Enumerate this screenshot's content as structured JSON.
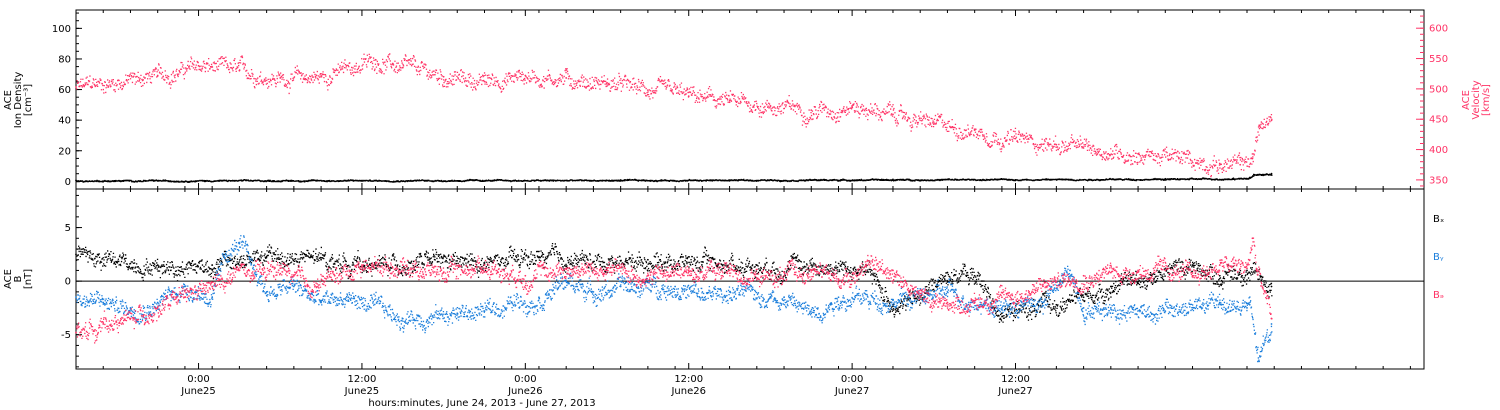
{
  "chart_data": [
    {
      "type": "scatter",
      "panel": "top",
      "left_axis": {
        "label_lines": [
          "ACE",
          "Ion Density",
          "[cm⁻³]"
        ],
        "range": [
          -5,
          112
        ],
        "ticks": [
          0,
          20,
          40,
          60,
          80,
          100
        ],
        "tick_labels": [
          "0",
          "20",
          "40",
          "60",
          "80",
          "100"
        ]
      },
      "right_axis": {
        "label_lines": [
          "ACE",
          "Velocity",
          "[km/s]"
        ],
        "range": [
          335,
          630
        ],
        "ticks": [
          350,
          400,
          450,
          500,
          550,
          600
        ],
        "tick_labels": [
          "350",
          "400",
          "450",
          "500",
          "550",
          "600"
        ],
        "color": "#ff3366"
      },
      "series": [
        {
          "axis": "right",
          "color": "#ff3366",
          "x_hours": [
            0,
            6,
            9,
            12,
            15,
            18,
            22,
            24,
            27,
            30,
            33,
            36,
            39,
            42,
            45,
            48,
            51,
            54,
            57,
            60,
            63,
            66,
            69,
            72,
            75,
            78,
            81,
            84,
            85.5,
            86.4,
            86.9,
            87.8
          ],
          "values": [
            503,
            522,
            538,
            530,
            518,
            520,
            548,
            535,
            520,
            512,
            522,
            518,
            510,
            498,
            488,
            478,
            472,
            465,
            472,
            458,
            442,
            432,
            418,
            408,
            400,
            393,
            385,
            377,
            375,
            385,
            440,
            448
          ]
        },
        {
          "axis": "left",
          "color": "#000000",
          "x_hours": [
            0,
            20,
            40,
            60,
            80,
            85,
            86.2,
            86.5,
            87.8
          ],
          "values": [
            0.6,
            0.8,
            0.9,
            1.3,
            1.7,
            2.0,
            2.5,
            4.5,
            5.0
          ]
        }
      ]
    },
    {
      "type": "scatter",
      "panel": "bottom",
      "left_axis": {
        "label_lines": [
          "ACE",
          "B",
          "[nT]"
        ],
        "range": [
          -8.2,
          8.6
        ],
        "ticks": [
          -5,
          0,
          5
        ],
        "tick_labels": [
          "-5",
          "0",
          "5"
        ]
      },
      "legend": [
        "Bₓ",
        "Bᵧ",
        "Bₔ"
      ],
      "zero_line": true,
      "series": [
        {
          "name": "Bx",
          "color": "#000000",
          "x_hours": [
            0,
            3,
            6,
            10,
            14,
            18,
            22,
            26,
            30,
            34,
            38,
            42,
            46,
            50,
            54,
            58,
            60,
            62,
            64,
            66,
            68,
            72,
            74,
            76,
            78,
            80,
            82,
            84,
            86,
            87.8
          ],
          "values": [
            2.5,
            1.8,
            1.5,
            1.5,
            2.3,
            2.0,
            1.5,
            1.8,
            1.6,
            2.2,
            1.8,
            2.0,
            1.8,
            1.5,
            1.5,
            1.0,
            -2.2,
            -1.5,
            0.8,
            0.5,
            -3.0,
            -2.2,
            -1.5,
            -0.5,
            0.2,
            1.0,
            1.5,
            0.5,
            1.0,
            -0.5
          ]
        },
        {
          "name": "By",
          "color": "#1c7fdc",
          "x_hours": [
            0,
            2,
            4,
            6,
            8,
            10,
            11,
            12,
            14,
            16,
            18,
            20,
            24,
            28,
            30,
            32,
            34,
            36,
            38,
            40,
            44,
            46,
            48,
            52,
            54,
            56,
            60,
            62,
            64,
            68,
            71,
            73,
            74,
            76,
            80,
            84,
            86,
            86.2,
            86.8,
            87.8
          ],
          "values": [
            -1.5,
            -2.0,
            -2.5,
            -2.0,
            -0.5,
            -1.5,
            2.5,
            3.5,
            -1.0,
            -0.5,
            -2.0,
            -1.5,
            -3.5,
            -3.0,
            -2.8,
            -2.0,
            -1.5,
            0.0,
            -1.0,
            -0.5,
            -0.5,
            -1.5,
            -1.0,
            -1.5,
            -3.0,
            -1.5,
            -1.8,
            -1.5,
            -1.0,
            -2.5,
            -2.0,
            1.0,
            -2.5,
            -2.5,
            -2.8,
            -2.0,
            -2.5,
            -2.2,
            -7.5,
            -4.0
          ]
        },
        {
          "name": "Bz",
          "color": "#ff3366",
          "x_hours": [
            0,
            2,
            4,
            6,
            8,
            10,
            12,
            13,
            15,
            17,
            19,
            21,
            24,
            27,
            30,
            33,
            36,
            39,
            42,
            45,
            48,
            50,
            52,
            54,
            56,
            58,
            60,
            62,
            64,
            66,
            68,
            70,
            72,
            74,
            76,
            78,
            80,
            82,
            84,
            86,
            86.4,
            86.7,
            87.8
          ],
          "values": [
            -4.8,
            -4.0,
            -3.5,
            -2.5,
            -1.5,
            -0.5,
            1.0,
            0.5,
            1.2,
            -0.5,
            0.5,
            1.5,
            1.5,
            0.8,
            1.5,
            0.5,
            1.2,
            1.0,
            0.5,
            1.0,
            1.0,
            0.3,
            0.5,
            1.0,
            0.2,
            1.5,
            1.0,
            -1.5,
            -2.0,
            -2.0,
            -1.5,
            -1.0,
            0.0,
            0.5,
            0.8,
            1.0,
            1.0,
            0.5,
            1.5,
            1.2,
            4.0,
            1.0,
            -3.5
          ]
        }
      ]
    }
  ],
  "x_axis": {
    "range_hours": [
      0,
      99
    ],
    "major_ticks": [
      {
        "hour": 9,
        "time": "0:00",
        "date": "June25"
      },
      {
        "hour": 21,
        "time": "12:00",
        "date": "June25"
      },
      {
        "hour": 33,
        "time": "0:00",
        "date": "June26"
      },
      {
        "hour": 45,
        "time": "12:00",
        "date": "June26"
      },
      {
        "hour": 57,
        "time": "0:00",
        "date": "June27"
      },
      {
        "hour": 69,
        "time": "12:00",
        "date": "June27"
      }
    ],
    "title": "hours:minutes, June 24, 2013 - June 27, 2013"
  },
  "colors": {
    "velocity": "#ff3366",
    "density": "#000000",
    "bx": "#000000",
    "by": "#1c7fdc",
    "bz": "#ff3366"
  }
}
